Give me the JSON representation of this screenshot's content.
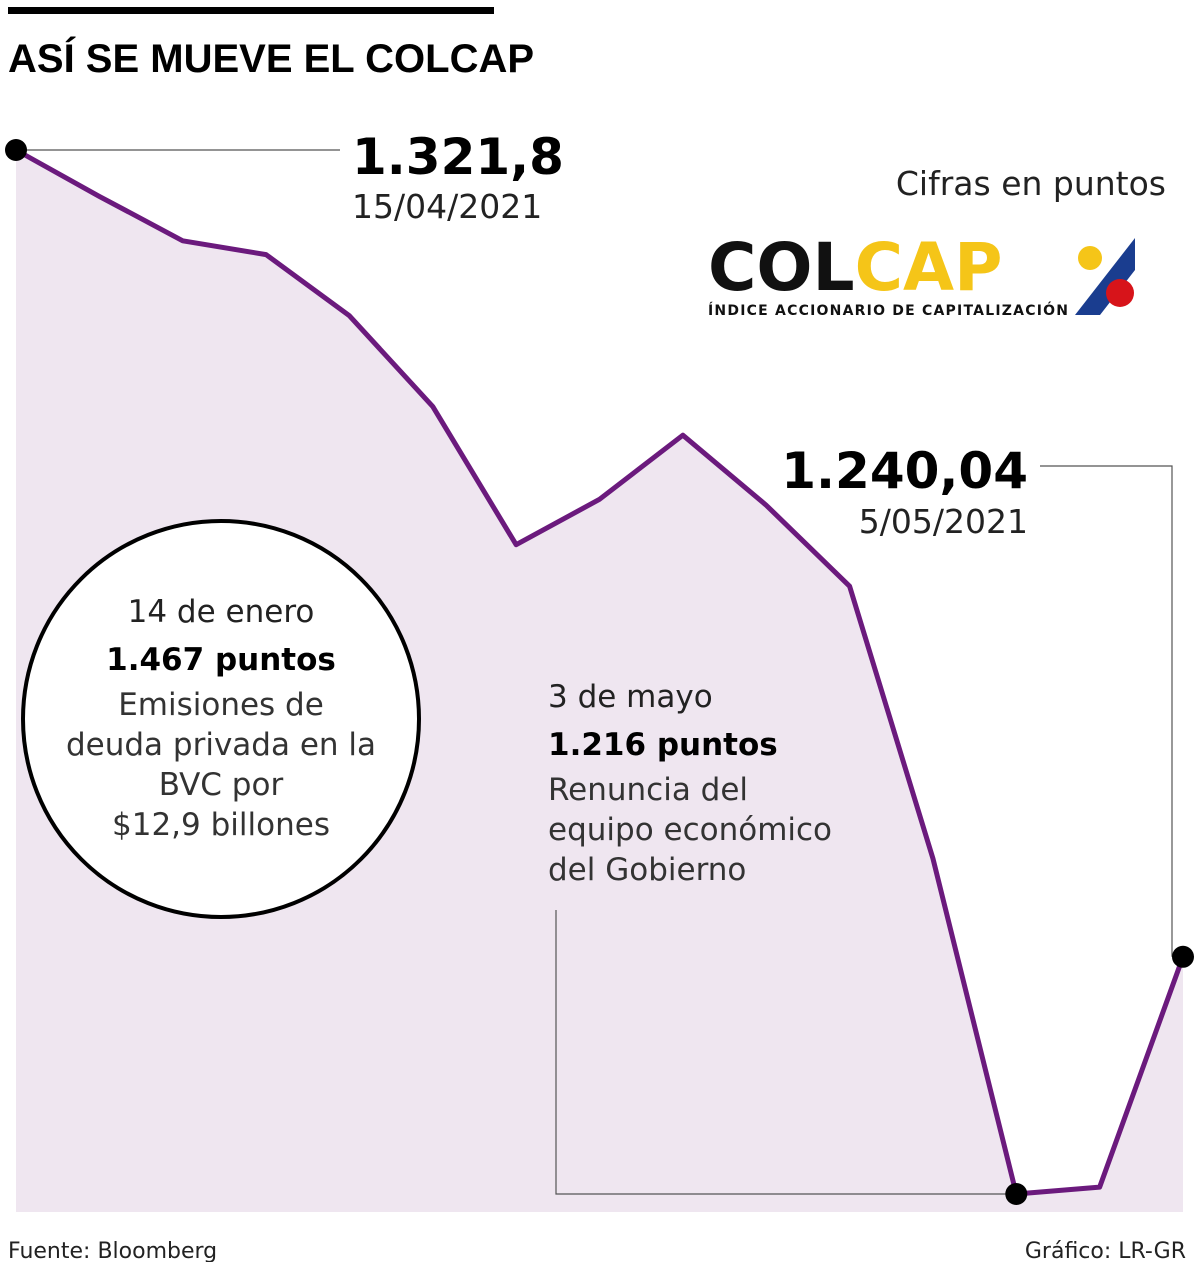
{
  "chart_data": {
    "type": "area",
    "title": "ASÍ SE MUEVE EL COLCAP",
    "subtitle": "Cifras en puntos",
    "categories": [
      "15/04/2021",
      null,
      null,
      null,
      null,
      null,
      null,
      null,
      null,
      null,
      null,
      null,
      null,
      null,
      "5/05/2021"
    ],
    "values": [
      1321.8,
      1317.1,
      1312.6,
      1311.2,
      1305.0,
      1295.8,
      1281.8,
      1286.4,
      1292.9,
      1285.8,
      1277.6,
      1250.0,
      1216.0,
      1216.7,
      1240.04
    ],
    "value_labels": [
      "1.321,8",
      null,
      null,
      null,
      null,
      null,
      null,
      null,
      null,
      null,
      null,
      null,
      null,
      null,
      "1.240,04"
    ],
    "color": "#6b1a7d",
    "fill": "#efe6f0",
    "annotations": [
      {
        "date": "14 de enero",
        "value": "1.467 puntos",
        "lines": [
          "Emisiones de",
          "deuda privada en la",
          "BVC por",
          "$12,9 billones"
        ]
      },
      {
        "date": "3 de mayo",
        "value": "1.216 puntos",
        "lines": [
          "Renuncia del",
          "equipo económico",
          "del Gobierno"
        ]
      }
    ],
    "logo": {
      "part1": "COL",
      "part2": "CAP",
      "tagline": "ÍNDICE ACCIONARIO DE CAPITALIZACIÓN"
    },
    "source": "Fuente: Bloomberg",
    "credit": "Gráfico: LR-GR"
  }
}
